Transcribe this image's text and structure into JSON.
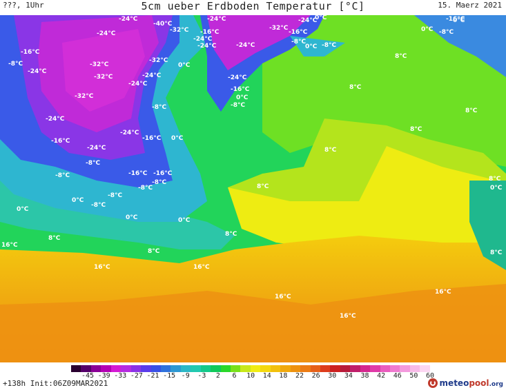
{
  "header": {
    "left": "???, 1Uhr",
    "title": "5cm ueber Erdboden Temperatur [°C]",
    "right": "15. Maerz 2021"
  },
  "map_labels": [
    "-40°C",
    "-32°C",
    "-24°C",
    "-16°C",
    "-8°C",
    "0°C",
    "8°C",
    "16°C"
  ],
  "colorbar": {
    "ticks": [
      "-45",
      "-39",
      "-33",
      "-27",
      "-21",
      "-15",
      "-9",
      "-3",
      "2",
      "6",
      "10",
      "14",
      "18",
      "22",
      "26",
      "30",
      "34",
      "38",
      "42",
      "46",
      "50",
      "60"
    ],
    "colors": [
      "#2a0030",
      "#55006a",
      "#8a0096",
      "#b300b3",
      "#d41ad4",
      "#b52be0",
      "#8a32e6",
      "#5a3cea",
      "#3850e6",
      "#2f72dc",
      "#2d98d2",
      "#2cb8c6",
      "#22c9b0",
      "#14c98a",
      "#10c95a",
      "#2ad82a",
      "#78e01a",
      "#c8e81a",
      "#f0ec14",
      "#f4d80e",
      "#f2c00c",
      "#f0a80c",
      "#ee9210",
      "#ec7c14",
      "#e66018",
      "#dd3c1c",
      "#cc2020",
      "#b81a3a",
      "#c01e6a",
      "#d4268e",
      "#e03aa8",
      "#ea5cbe",
      "#f07ad0",
      "#f49ade",
      "#f8bae8",
      "#fcd6f2"
    ]
  },
  "footer": {
    "left": "+138h Init:06Z09MAR2021",
    "logo_main": "meteo",
    "logo_accent": "pool",
    "logo_tld": ".org"
  }
}
